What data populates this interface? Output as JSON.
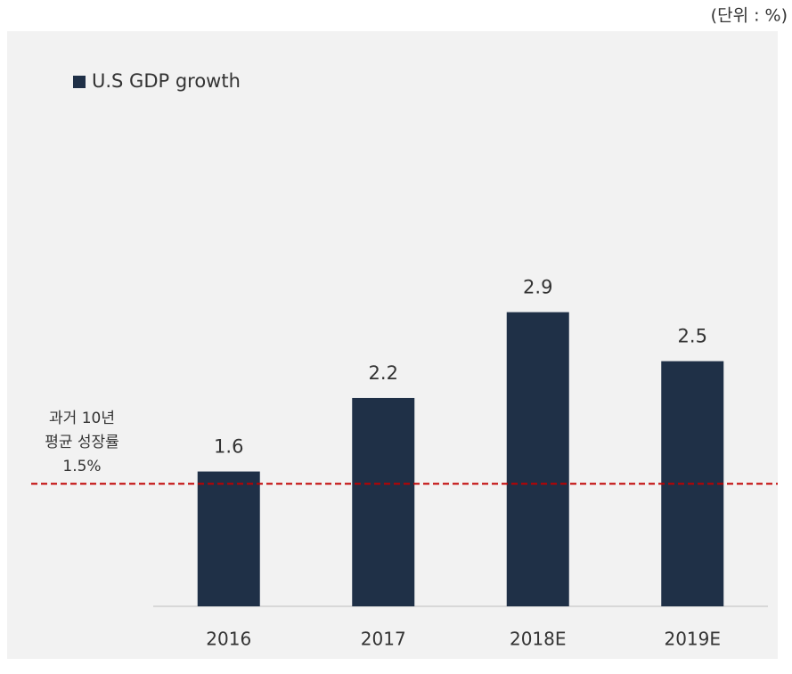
{
  "chart_data": {
    "type": "bar",
    "unit_note": "(단위 : %)",
    "categories": [
      "2016",
      "2017",
      "2018E",
      "2019E"
    ],
    "series": [
      {
        "name": "U.S GDP growth",
        "color": "#1f3047",
        "values": [
          1.6,
          2.2,
          2.9,
          2.5
        ]
      }
    ],
    "ylim": [
      0.5,
      3.5
    ],
    "reference_line": {
      "value": 1.5,
      "color": "#c00000",
      "label": [
        "과거 10년",
        "평균 성장률",
        "1.5%"
      ]
    }
  }
}
